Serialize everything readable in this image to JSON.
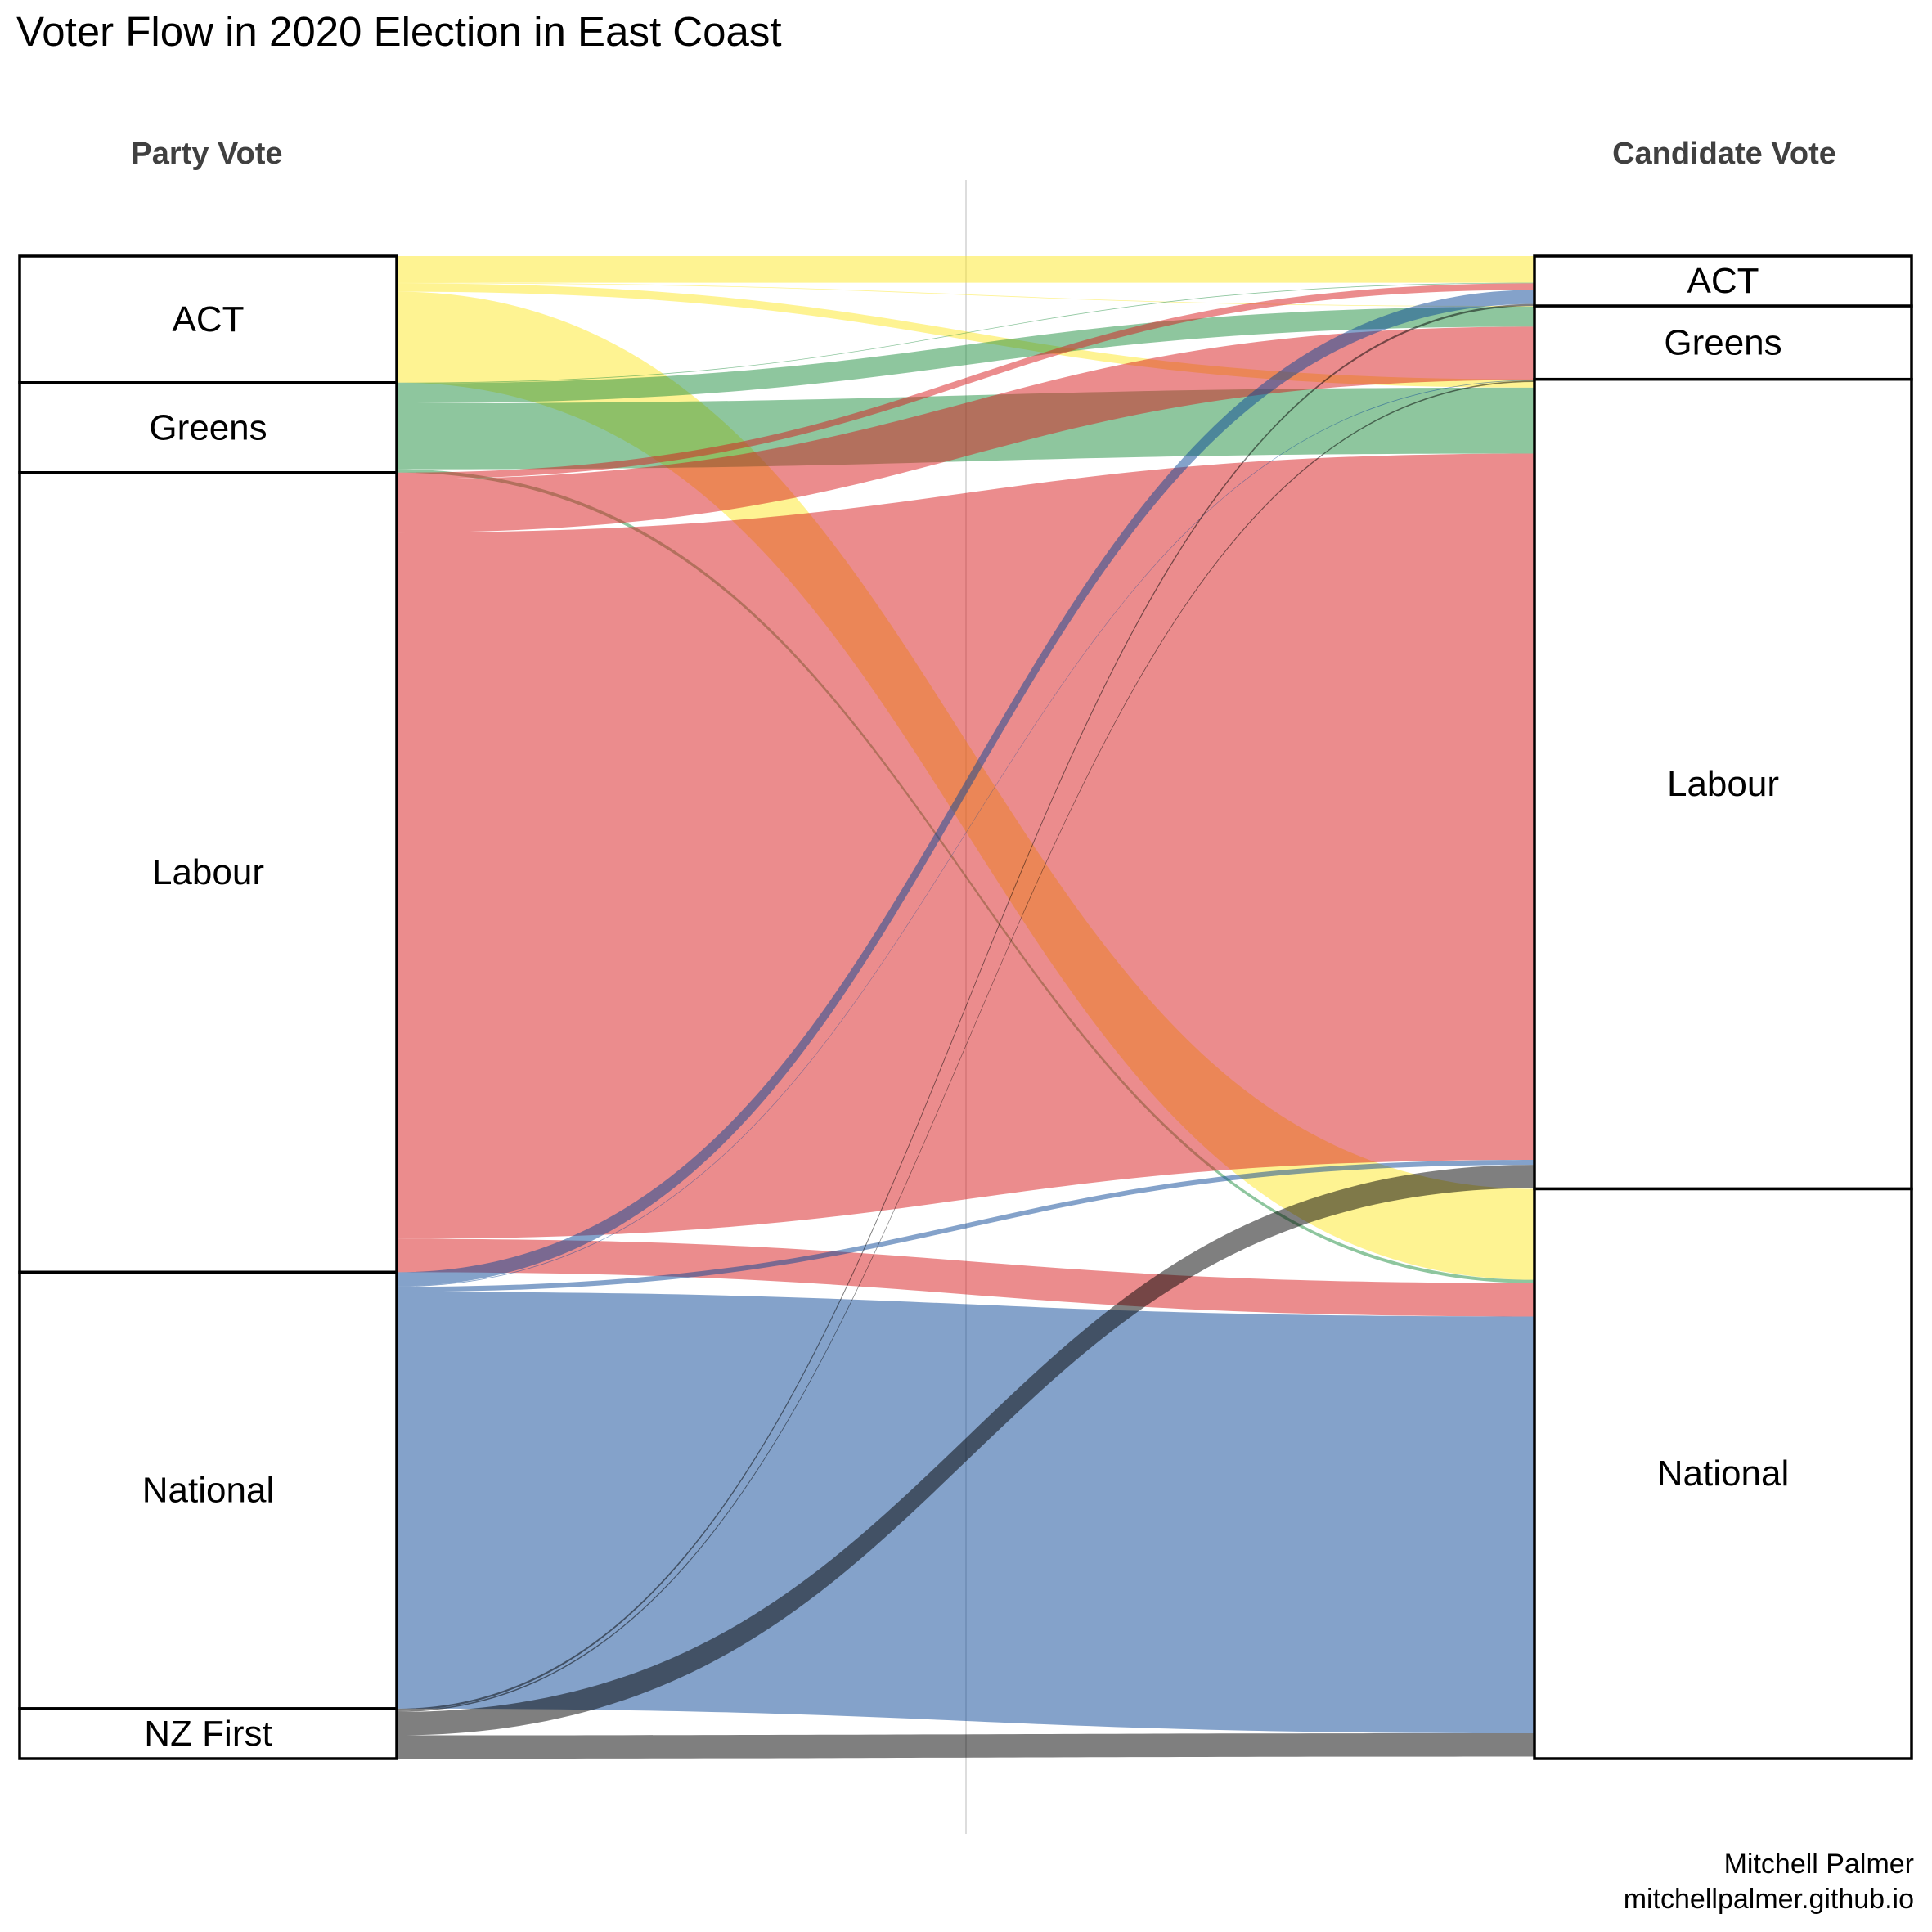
{
  "chart_data": {
    "type": "sankey",
    "title": "Voter Flow in 2020 Election in East Coast",
    "left_label": "Party Vote",
    "right_label": "Candidate Vote",
    "credit_line1": "Mitchell Palmer",
    "credit_line2": "mitchellpalmer.github.io",
    "left_nodes": [
      {
        "name": "ACT",
        "value": 3.8
      },
      {
        "name": "Greens",
        "value": 2.7
      },
      {
        "name": "Labour",
        "value": 24.0
      },
      {
        "name": "National",
        "value": 13.1
      },
      {
        "name": "NZ First",
        "value": 1.5
      }
    ],
    "right_nodes": [
      {
        "name": "ACT",
        "value": 1.5
      },
      {
        "name": "Greens",
        "value": 2.2
      },
      {
        "name": "Labour",
        "value": 24.3
      },
      {
        "name": "National",
        "value": 17.1
      }
    ],
    "colors": {
      "ACT": "#fde725",
      "Greens": "#1e8e3e",
      "Labour": "#d7191c",
      "National": "#0a4595",
      "NZ First": "#000000",
      "link_opacity": 0.5,
      "center_line": "#dddddd"
    },
    "links": [
      {
        "from": "ACT",
        "to": "ACT",
        "value": 0.8
      },
      {
        "from": "ACT",
        "to": "Greens",
        "value": 0.02
      },
      {
        "from": "ACT",
        "to": "Labour",
        "value": 0.25
      },
      {
        "from": "ACT",
        "to": "National",
        "value": 2.73
      },
      {
        "from": "Greens",
        "to": "ACT",
        "value": 0.02
      },
      {
        "from": "Greens",
        "to": "Greens",
        "value": 0.6
      },
      {
        "from": "Greens",
        "to": "Labour",
        "value": 1.98
      },
      {
        "from": "Greens",
        "to": "National",
        "value": 0.1
      },
      {
        "from": "Labour",
        "to": "ACT",
        "value": 0.2
      },
      {
        "from": "Labour",
        "to": "Greens",
        "value": 1.6
      },
      {
        "from": "Labour",
        "to": "Labour",
        "value": 21.2
      },
      {
        "from": "Labour",
        "to": "National",
        "value": 1.0
      },
      {
        "from": "National",
        "to": "ACT",
        "value": 0.42
      },
      {
        "from": "National",
        "to": "Greens",
        "value": 0.02
      },
      {
        "from": "National",
        "to": "Labour",
        "value": 0.15
      },
      {
        "from": "National",
        "to": "National",
        "value": 12.51
      },
      {
        "from": "NZ First",
        "to": "ACT",
        "value": 0.06
      },
      {
        "from": "NZ First",
        "to": "Greens",
        "value": 0.04
      },
      {
        "from": "NZ First",
        "to": "Labour",
        "value": 0.7
      },
      {
        "from": "NZ First",
        "to": "National",
        "value": 0.7
      }
    ]
  }
}
